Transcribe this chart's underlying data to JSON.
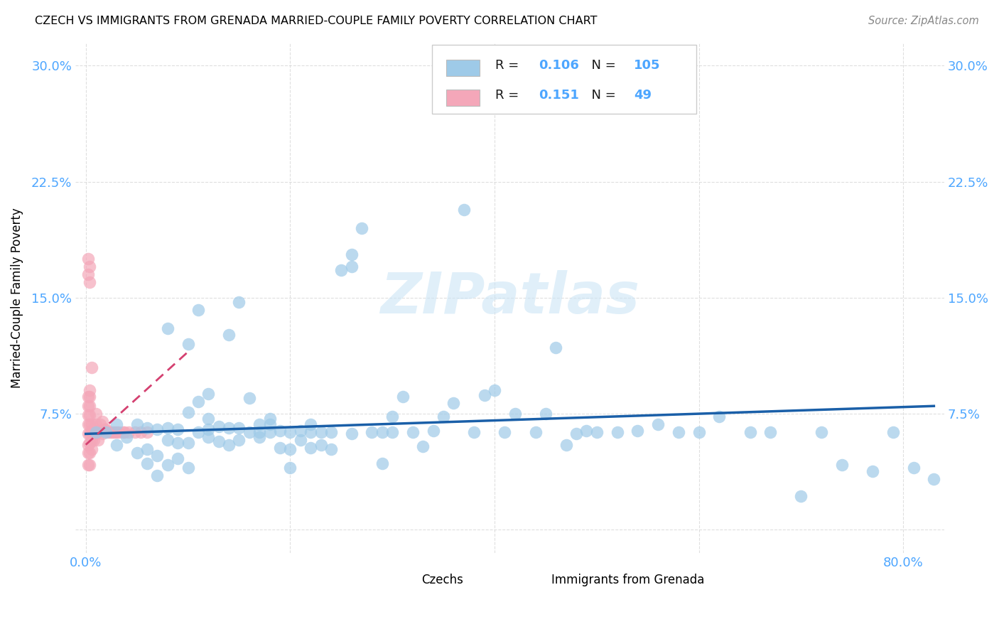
{
  "title": "CZECH VS IMMIGRANTS FROM GRENADA MARRIED-COUPLE FAMILY POVERTY CORRELATION CHART",
  "source": "Source: ZipAtlas.com",
  "tick_color": "#4da6ff",
  "ylabel": "Married-Couple Family Poverty",
  "yaxis_ticks": [
    0.0,
    0.075,
    0.15,
    0.225,
    0.3
  ],
  "yaxis_tick_labels": [
    "",
    "7.5%",
    "15.0%",
    "22.5%",
    "30.0%"
  ],
  "xaxis_ticks": [
    0.0,
    0.2,
    0.4,
    0.6,
    0.8
  ],
  "xaxis_tick_labels": [
    "0.0%",
    "",
    "",
    "",
    "80.0%"
  ],
  "xlim": [
    -0.01,
    0.84
  ],
  "ylim": [
    -0.015,
    0.315
  ],
  "watermark": "ZIPatlas",
  "legend_R_blue": "0.106",
  "legend_N_blue": "105",
  "legend_R_pink": "0.151",
  "legend_N_pink": "49",
  "blue_color": "#9ECAE8",
  "pink_color": "#F4A7B9",
  "trend_blue_color": "#1A5FA8",
  "trend_pink_color": "#D44070",
  "background_color": "#ffffff",
  "grid_color": "#d8d8d8",
  "czechs_x": [
    0.01,
    0.02,
    0.03,
    0.03,
    0.04,
    0.05,
    0.05,
    0.06,
    0.06,
    0.06,
    0.07,
    0.07,
    0.07,
    0.08,
    0.08,
    0.08,
    0.08,
    0.09,
    0.09,
    0.09,
    0.1,
    0.1,
    0.1,
    0.1,
    0.11,
    0.11,
    0.11,
    0.12,
    0.12,
    0.12,
    0.12,
    0.13,
    0.13,
    0.14,
    0.14,
    0.14,
    0.15,
    0.15,
    0.15,
    0.16,
    0.16,
    0.17,
    0.17,
    0.17,
    0.18,
    0.18,
    0.18,
    0.19,
    0.19,
    0.2,
    0.2,
    0.2,
    0.21,
    0.21,
    0.22,
    0.22,
    0.22,
    0.23,
    0.23,
    0.24,
    0.24,
    0.25,
    0.26,
    0.26,
    0.27,
    0.28,
    0.29,
    0.29,
    0.3,
    0.3,
    0.31,
    0.32,
    0.33,
    0.34,
    0.35,
    0.36,
    0.38,
    0.39,
    0.4,
    0.41,
    0.42,
    0.44,
    0.45,
    0.47,
    0.48,
    0.49,
    0.5,
    0.52,
    0.54,
    0.56,
    0.58,
    0.6,
    0.62,
    0.65,
    0.67,
    0.7,
    0.72,
    0.74,
    0.77,
    0.79,
    0.81,
    0.83,
    0.26,
    0.37,
    0.46
  ],
  "czechs_y": [
    0.063,
    0.063,
    0.055,
    0.068,
    0.06,
    0.05,
    0.068,
    0.043,
    0.052,
    0.066,
    0.035,
    0.048,
    0.065,
    0.042,
    0.058,
    0.066,
    0.13,
    0.046,
    0.056,
    0.065,
    0.04,
    0.056,
    0.076,
    0.12,
    0.063,
    0.083,
    0.142,
    0.06,
    0.072,
    0.088,
    0.065,
    0.057,
    0.067,
    0.055,
    0.066,
    0.126,
    0.058,
    0.066,
    0.147,
    0.063,
    0.085,
    0.06,
    0.063,
    0.068,
    0.063,
    0.068,
    0.072,
    0.053,
    0.064,
    0.04,
    0.052,
    0.063,
    0.058,
    0.064,
    0.053,
    0.063,
    0.068,
    0.055,
    0.063,
    0.052,
    0.063,
    0.168,
    0.062,
    0.178,
    0.195,
    0.063,
    0.043,
    0.063,
    0.073,
    0.063,
    0.086,
    0.063,
    0.054,
    0.064,
    0.073,
    0.082,
    0.063,
    0.087,
    0.09,
    0.063,
    0.075,
    0.063,
    0.075,
    0.055,
    0.062,
    0.064,
    0.063,
    0.063,
    0.064,
    0.068,
    0.063,
    0.063,
    0.073,
    0.063,
    0.063,
    0.022,
    0.063,
    0.042,
    0.038,
    0.063,
    0.04,
    0.033,
    0.17,
    0.207,
    0.118
  ],
  "grenada_x": [
    0.002,
    0.002,
    0.002,
    0.002,
    0.002,
    0.002,
    0.002,
    0.002,
    0.002,
    0.002,
    0.004,
    0.004,
    0.004,
    0.004,
    0.004,
    0.004,
    0.004,
    0.004,
    0.004,
    0.004,
    0.004,
    0.006,
    0.006,
    0.006,
    0.006,
    0.006,
    0.008,
    0.01,
    0.01,
    0.01,
    0.012,
    0.012,
    0.014,
    0.016,
    0.016,
    0.018,
    0.02,
    0.022,
    0.024,
    0.026,
    0.028,
    0.03,
    0.032,
    0.036,
    0.038,
    0.042,
    0.048,
    0.054,
    0.06
  ],
  "grenada_y": [
    0.042,
    0.05,
    0.055,
    0.062,
    0.068,
    0.074,
    0.08,
    0.086,
    0.165,
    0.175,
    0.042,
    0.05,
    0.056,
    0.062,
    0.068,
    0.074,
    0.08,
    0.086,
    0.09,
    0.16,
    0.17,
    0.052,
    0.058,
    0.064,
    0.068,
    0.105,
    0.058,
    0.062,
    0.068,
    0.075,
    0.058,
    0.064,
    0.068,
    0.062,
    0.07,
    0.065,
    0.065,
    0.063,
    0.063,
    0.063,
    0.063,
    0.063,
    0.063,
    0.063,
    0.063,
    0.063,
    0.063,
    0.063,
    0.063
  ]
}
